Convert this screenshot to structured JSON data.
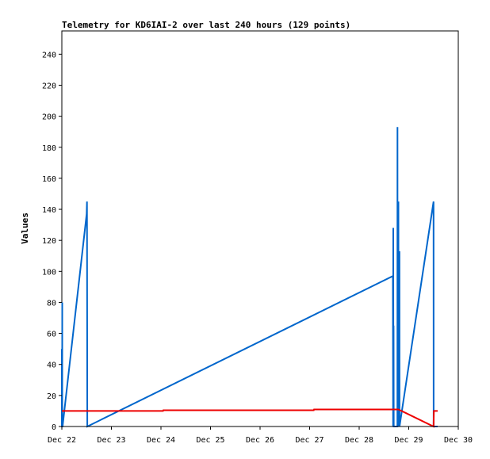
{
  "chart_data": {
    "type": "line",
    "title": "Telemetry for KD6IAI-2 over last 240 hours (129 points)",
    "xlabel": "",
    "ylabel": "Values",
    "x_ticks": [
      "Dec 22",
      "Dec 23",
      "Dec 24",
      "Dec 25",
      "Dec 26",
      "Dec 27",
      "Dec 28",
      "Dec 29",
      "Dec 30"
    ],
    "xlim": [
      "2023-12-22T00:00",
      "2023-12-30T00:00"
    ],
    "ylim": [
      0,
      255
    ],
    "y_ticks": [
      0,
      20,
      40,
      60,
      80,
      100,
      120,
      140,
      160,
      180,
      200,
      220,
      240
    ],
    "grid": false,
    "series": [
      {
        "color": "#0066cc",
        "points": [
          [
            "2023-12-22T00:00",
            50
          ],
          [
            "2023-12-22T00:01",
            0
          ],
          [
            "2023-12-22T00:06",
            0
          ],
          [
            "2023-12-22T00:07",
            33
          ],
          [
            "2023-12-22T00:08",
            0
          ],
          [
            "2023-12-22T00:10",
            0
          ],
          [
            "2023-12-22T00:11",
            80
          ],
          [
            "2023-12-22T00:12",
            0
          ],
          [
            "2023-12-22T00:20",
            0
          ],
          [
            "2023-12-22T12:00",
            137
          ],
          [
            "2023-12-22T12:10",
            145
          ],
          [
            "2023-12-22T12:20",
            0
          ],
          [
            "2023-12-28T16:20",
            97
          ],
          [
            "2023-12-28T16:25",
            0
          ],
          [
            "2023-12-28T16:30",
            128
          ],
          [
            "2023-12-28T16:35",
            0
          ],
          [
            "2023-12-28T16:40",
            65
          ],
          [
            "2023-12-28T16:45",
            0
          ],
          [
            "2023-12-28T18:30",
            0
          ],
          [
            "2023-12-28T18:33",
            193
          ],
          [
            "2023-12-28T18:36",
            0
          ],
          [
            "2023-12-28T19:00",
            145
          ],
          [
            "2023-12-28T19:03",
            0
          ],
          [
            "2023-12-28T19:30",
            113
          ],
          [
            "2023-12-28T19:33",
            0
          ],
          [
            "2023-12-29T12:00",
            145
          ],
          [
            "2023-12-29T12:03",
            0
          ],
          [
            "2023-12-29T14:00",
            0
          ]
        ]
      },
      {
        "color": "#ee0000",
        "points": [
          [
            "2023-12-22T00:00",
            10
          ],
          [
            "2023-12-24T01:00",
            10
          ],
          [
            "2023-12-24T01:10",
            10.5
          ],
          [
            "2023-12-27T02:00",
            10.5
          ],
          [
            "2023-12-27T02:10",
            11
          ],
          [
            "2023-12-28T19:00",
            11
          ],
          [
            "2023-12-29T12:00",
            0
          ],
          [
            "2023-12-29T12:10",
            10
          ],
          [
            "2023-12-29T14:00",
            10
          ]
        ]
      }
    ]
  }
}
